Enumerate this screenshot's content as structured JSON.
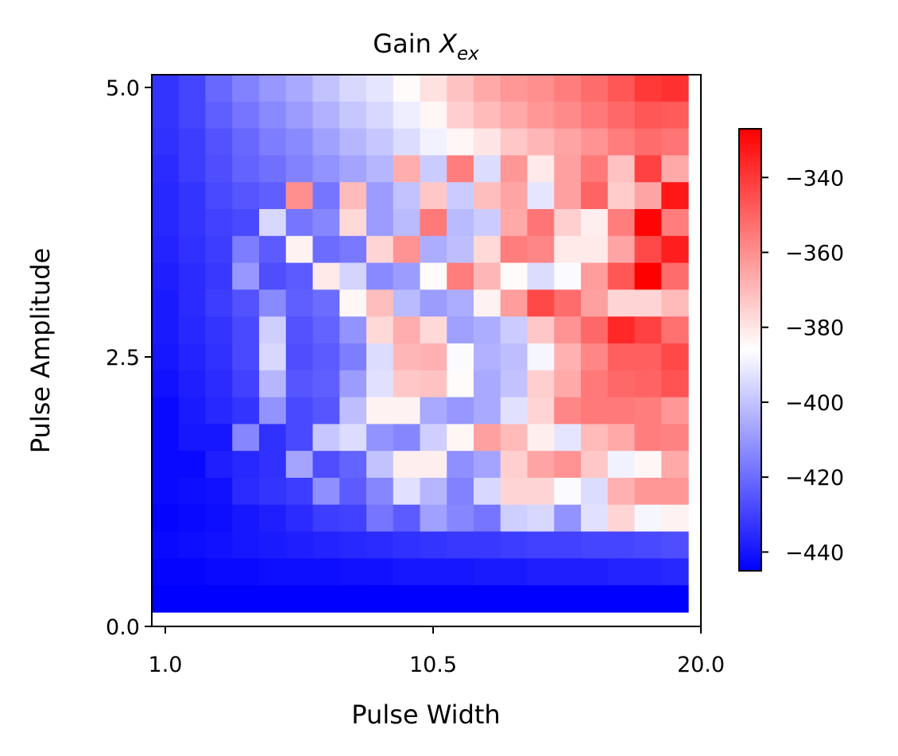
{
  "chart_data": {
    "type": "heatmap",
    "title_prefix": "Gain ",
    "title_symbol": "X",
    "title_subscript": "ex",
    "xlabel": "Pulse Width",
    "ylabel": "Pulse Amplitude",
    "x_tick_labels": [
      "1.0",
      "10.5",
      "20.0"
    ],
    "y_tick_labels": [
      "0.0",
      "2.5",
      "5.0"
    ],
    "x_range": [
      1.0,
      20.0
    ],
    "y_range": [
      0.0,
      5.0
    ],
    "grid": false,
    "colormap": "bwr",
    "colormap_colors": [
      "#0000ff",
      "#ffffff",
      "#ff0000"
    ],
    "vmin": -445,
    "vmax": -327,
    "colorbar_ticks": [
      -340,
      -360,
      -380,
      -400,
      -420,
      -440
    ],
    "colorbar_tick_labels": [
      "−340",
      "−360",
      "−380",
      "−400",
      "−420",
      "−440"
    ],
    "rows_top_to_bottom": [
      [
        -433,
        -429,
        -421,
        -415,
        -410,
        -406,
        -400,
        -395,
        -392,
        -385,
        -379,
        -372,
        -366,
        -362,
        -360,
        -356,
        -352,
        -347,
        -340,
        -338
      ],
      [
        -433,
        -429,
        -423,
        -418,
        -413,
        -409,
        -404,
        -399,
        -395,
        -390,
        -384,
        -375,
        -370,
        -366,
        -362,
        -359,
        -355,
        -351,
        -347,
        -348
      ],
      [
        -434,
        -431,
        -426,
        -421,
        -416,
        -413,
        -408,
        -403,
        -399,
        -394,
        -389,
        -384,
        -380,
        -373,
        -369,
        -365,
        -361,
        -356,
        -352,
        -354
      ],
      [
        -435,
        -431,
        -427,
        -422,
        -419,
        -415,
        -411,
        -407,
        -403,
        -367,
        -398,
        -356,
        -394,
        -362,
        -381,
        -364,
        -355,
        -372,
        -342,
        -366
      ],
      [
        -436,
        -433,
        -428,
        -425,
        -423,
        -360,
        -418,
        -370,
        -409,
        -400,
        -373,
        -398,
        -371,
        -365,
        -392,
        -364,
        -350,
        -374,
        -365,
        -332
      ],
      [
        -436,
        -433,
        -430,
        -428,
        -395,
        -418,
        -414,
        -377,
        -409,
        -402,
        -355,
        -402,
        -398,
        -366,
        -354,
        -375,
        -382,
        -356,
        -328,
        -356
      ],
      [
        -437,
        -434,
        -431,
        -416,
        -424,
        -383,
        -420,
        -417,
        -376,
        -361,
        -405,
        -401,
        -377,
        -356,
        -358,
        -381,
        -381,
        -365,
        -344,
        -334
      ],
      [
        -438,
        -435,
        -432,
        -410,
        -427,
        -424,
        -381,
        -396,
        -413,
        -409,
        -385,
        -356,
        -369,
        -385,
        -394,
        -387,
        -363,
        -347,
        -327,
        -352
      ],
      [
        -439,
        -435,
        -431,
        -426,
        -413,
        -423,
        -420,
        -384,
        -371,
        -402,
        -409,
        -405,
        -383,
        -363,
        -344,
        -352,
        -364,
        -376,
        -376,
        -370
      ],
      [
        -439,
        -436,
        -433,
        -428,
        -397,
        -426,
        -422,
        -411,
        -377,
        -367,
        -377,
        -408,
        -405,
        -398,
        -373,
        -361,
        -351,
        -336,
        -342,
        -353
      ],
      [
        -440,
        -437,
        -434,
        -428,
        -395,
        -427,
        -424,
        -416,
        -394,
        -369,
        -368,
        -387,
        -404,
        -401,
        -388,
        -368,
        -358,
        -349,
        -349,
        -344
      ],
      [
        -441,
        -438,
        -435,
        -430,
        -403,
        -425,
        -423,
        -409,
        -393,
        -373,
        -372,
        -385,
        -406,
        -400,
        -375,
        -366,
        -355,
        -351,
        -350,
        -346
      ],
      [
        -443,
        -439,
        -436,
        -433,
        -411,
        -428,
        -425,
        -401,
        -383,
        -383,
        -406,
        -410,
        -406,
        -393,
        -376,
        -358,
        -355,
        -355,
        -356,
        -362
      ],
      [
        -443,
        -440,
        -440,
        -414,
        -434,
        -428,
        -399,
        -394,
        -411,
        -414,
        -397,
        -384,
        -364,
        -370,
        -382,
        -392,
        -370,
        -366,
        -356,
        -357
      ],
      [
        -443,
        -443,
        -438,
        -436,
        -434,
        -407,
        -427,
        -422,
        -400,
        -382,
        -382,
        -412,
        -407,
        -375,
        -365,
        -361,
        -373,
        -389,
        -384,
        -366
      ],
      [
        -443,
        -442,
        -441,
        -435,
        -433,
        -431,
        -412,
        -424,
        -414,
        -393,
        -403,
        -415,
        -395,
        -376,
        -376,
        -387,
        -394,
        -368,
        -362,
        -362
      ],
      [
        -444,
        -443,
        -442,
        -440,
        -438,
        -435,
        -431,
        -430,
        -418,
        -424,
        -408,
        -414,
        -418,
        -397,
        -395,
        -411,
        -393,
        -376,
        -388,
        -383
      ],
      [
        -443,
        -442,
        -441,
        -440,
        -439,
        -438,
        -437,
        -436,
        -435,
        -434,
        -433,
        -432,
        -432,
        -431,
        -430,
        -430,
        -429,
        -429,
        -428,
        -427
      ],
      [
        -444,
        -444,
        -443,
        -443,
        -442,
        -442,
        -442,
        -441,
        -441,
        -440,
        -440,
        -440,
        -439,
        -439,
        -438,
        -438,
        -438,
        -437,
        -437,
        -436
      ],
      [
        -445,
        -445,
        -445,
        -445,
        -445,
        -445,
        -445,
        -445,
        -445,
        -445,
        -445,
        -445,
        -445,
        -445,
        -445,
        -445,
        -445,
        -445,
        -445,
        -445
      ]
    ]
  }
}
